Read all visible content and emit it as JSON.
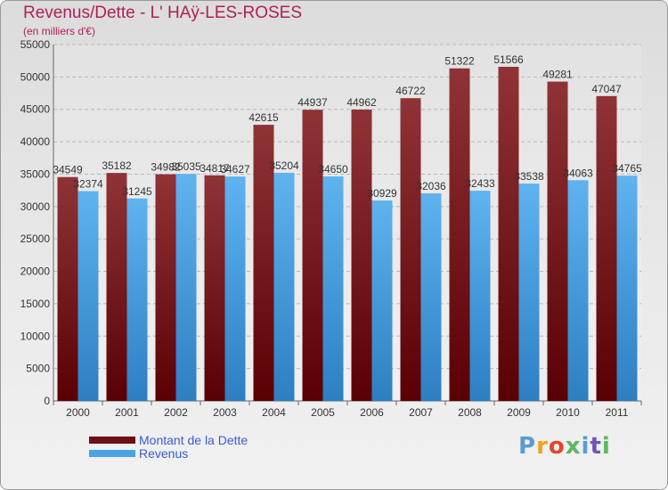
{
  "title": "Revenus/Dette - L' HAÿ-LES-ROSES",
  "subtitle": "(en milliers d'€)",
  "colors": {
    "dette": "#6e0f14",
    "revenus": "#4aa3e4",
    "title": "#b01f5a",
    "legend_text": "#3a5bd6"
  },
  "legend": [
    {
      "label": "Montant de la Dette",
      "color": "#6e0f14"
    },
    {
      "label": "Revenus",
      "color": "#4aa3e4"
    }
  ],
  "logo": {
    "text": "Proxiti"
  },
  "chart_data": {
    "type": "bar",
    "categories": [
      "2000",
      "2001",
      "2002",
      "2003",
      "2004",
      "2005",
      "2006",
      "2007",
      "2008",
      "2009",
      "2010",
      "2011"
    ],
    "series": [
      {
        "name": "Montant de la Dette",
        "values": [
          34549,
          35182,
          34982,
          34817,
          42615,
          44937,
          44962,
          46722,
          51322,
          51566,
          49281,
          47047
        ]
      },
      {
        "name": "Revenus",
        "values": [
          32374,
          31245,
          35035,
          34627,
          35204,
          34650,
          30929,
          32036,
          32433,
          33538,
          34063,
          34765
        ]
      }
    ],
    "ylim": [
      0,
      55000
    ],
    "yticks": [
      0,
      5000,
      10000,
      15000,
      20000,
      25000,
      30000,
      35000,
      40000,
      45000,
      50000,
      55000
    ],
    "grid": true,
    "legend_position": "bottom-left"
  }
}
